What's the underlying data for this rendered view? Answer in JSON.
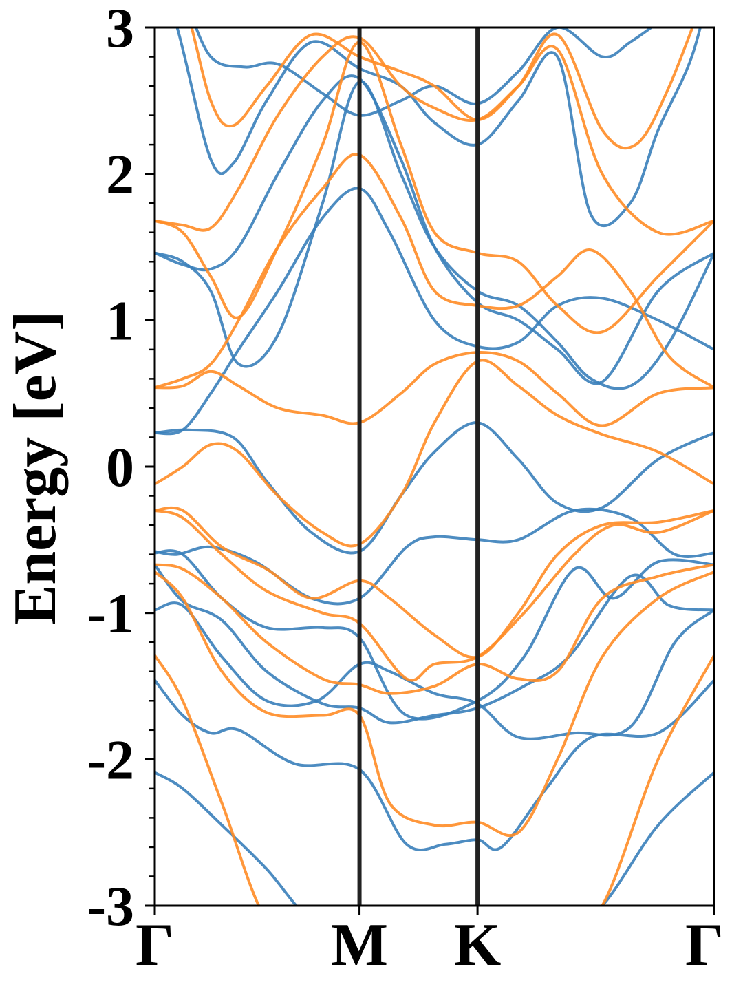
{
  "chart_data": {
    "type": "line",
    "title": "",
    "xlabel": "",
    "ylabel": "Energy [eV]",
    "ylim": [
      -3,
      3
    ],
    "yticks": [
      "-3",
      "-2",
      "-1",
      "0",
      "1",
      "2",
      "3"
    ],
    "xlim": [
      0,
      1.0
    ],
    "kpoints": [
      {
        "label": "Γ",
        "x": 0.0
      },
      {
        "label": "M",
        "x": 0.366
      },
      {
        "label": "K",
        "x": 0.577
      },
      {
        "label": "Γ",
        "x": 1.0
      }
    ],
    "grid": false,
    "legend": "none",
    "colors": {
      "spin_up": "#3a7fba",
      "spin_down": "#ff8c26",
      "kline": "#222222"
    },
    "series": [
      {
        "group": "spin_up",
        "x": [
          0,
          0.05,
          0.12,
          0.2,
          0.28,
          0.366,
          0.45,
          0.52,
          0.577,
          0.65,
          0.72,
          0.8,
          0.9,
          1.0
        ],
        "values": [
          -2.09,
          -2.2,
          -2.45,
          -2.75,
          -3.1,
          -3.2,
          -3.2,
          -3.2,
          -3.2,
          -3.2,
          -3.2,
          -3.0,
          -2.45,
          -2.09
        ]
      },
      {
        "group": "spin_up",
        "x": [
          0,
          0.05,
          0.1,
          0.15,
          0.25,
          0.366,
          0.45,
          0.52,
          0.577,
          0.62,
          0.7,
          0.78,
          0.9,
          1.0
        ],
        "values": [
          -1.46,
          -1.7,
          -1.82,
          -1.8,
          -2.03,
          -2.07,
          -2.58,
          -2.58,
          -2.55,
          -2.6,
          -2.2,
          -1.85,
          -1.82,
          -1.46
        ]
      },
      {
        "group": "spin_up",
        "x": [
          0,
          0.05,
          0.12,
          0.2,
          0.29,
          0.366,
          0.42,
          0.5,
          0.577,
          0.65,
          0.75,
          0.85,
          0.93,
          1.0
        ],
        "values": [
          -0.98,
          -0.95,
          -1.3,
          -1.6,
          -1.6,
          -1.35,
          -1.4,
          -1.55,
          -1.62,
          -1.85,
          -1.82,
          -1.78,
          -1.2,
          -0.98
        ]
      },
      {
        "group": "spin_up",
        "x": [
          0,
          0.05,
          0.12,
          0.2,
          0.3,
          0.366,
          0.42,
          0.5,
          0.577,
          0.66,
          0.74,
          0.85,
          0.92,
          1.0
        ],
        "values": [
          -0.67,
          -0.92,
          -1.05,
          -1.4,
          -1.62,
          -1.65,
          -1.75,
          -1.7,
          -1.65,
          -1.5,
          -1.3,
          -0.75,
          -0.95,
          -0.98
        ]
      },
      {
        "group": "spin_up",
        "x": [
          0,
          0.05,
          0.12,
          0.2,
          0.3,
          0.366,
          0.45,
          0.577,
          0.66,
          0.75,
          0.82,
          0.9,
          1.0
        ],
        "values": [
          -0.59,
          -0.6,
          -0.9,
          -1.1,
          -1.1,
          -1.17,
          -1.7,
          -1.6,
          -1.3,
          -0.7,
          -0.9,
          -0.65,
          -0.67
        ]
      },
      {
        "group": "spin_up",
        "x": [
          0,
          0.04,
          0.1,
          0.18,
          0.28,
          0.366,
          0.45,
          0.5,
          0.577,
          0.65,
          0.75,
          0.85,
          0.93,
          1.0
        ],
        "values": [
          -0.58,
          -0.6,
          -0.55,
          -0.65,
          -0.9,
          -0.9,
          -0.55,
          -0.48,
          -0.5,
          -0.5,
          -0.3,
          -0.35,
          -0.6,
          -0.59
        ]
      },
      {
        "group": "spin_up",
        "x": [
          0,
          0.06,
          0.14,
          0.2,
          0.28,
          0.366,
          0.44,
          0.5,
          0.577,
          0.65,
          0.72,
          0.8,
          0.9,
          1.0
        ],
        "values": [
          0.23,
          0.25,
          0.2,
          -0.1,
          -0.45,
          -0.58,
          -0.2,
          0.1,
          0.3,
          0.05,
          -0.25,
          -0.28,
          0.05,
          0.23
        ]
      },
      {
        "group": "spin_up",
        "x": [
          0,
          0.05,
          0.1,
          0.15,
          0.22,
          0.3,
          0.366,
          0.42,
          0.5,
          0.577,
          0.65,
          0.72,
          0.8,
          0.9,
          1.0
        ],
        "values": [
          0.23,
          0.25,
          0.5,
          0.8,
          1.2,
          1.7,
          1.9,
          1.6,
          1.0,
          0.82,
          0.85,
          1.1,
          1.15,
          1.0,
          0.8
        ]
      },
      {
        "group": "spin_up",
        "x": [
          0,
          0.05,
          0.1,
          0.15,
          0.22,
          0.3,
          0.366,
          0.44,
          0.5,
          0.577,
          0.65,
          0.72,
          0.78,
          0.85,
          0.92,
          1.0
        ],
        "values": [
          1.46,
          1.4,
          1.2,
          0.7,
          0.9,
          1.8,
          2.63,
          2.0,
          1.5,
          1.2,
          1.1,
          0.85,
          0.6,
          0.55,
          0.85,
          1.46
        ]
      },
      {
        "group": "spin_up",
        "x": [
          0,
          0.05,
          0.1,
          0.15,
          0.22,
          0.3,
          0.366,
          0.44,
          0.5,
          0.577,
          0.65,
          0.72,
          0.8,
          0.9,
          1.0
        ],
        "values": [
          1.46,
          1.38,
          1.35,
          1.5,
          2.0,
          2.5,
          2.65,
          2.1,
          1.5,
          1.12,
          1.0,
          0.8,
          0.58,
          1.2,
          1.46
        ]
      },
      {
        "group": "spin_up",
        "x": [
          0,
          0.04,
          0.1,
          0.14,
          0.2,
          0.28,
          0.366,
          0.44,
          0.5,
          0.577,
          0.65,
          0.72,
          0.78,
          0.85,
          0.9,
          0.96,
          1.0
        ],
        "values": [
          3.4,
          3.0,
          2.1,
          2.07,
          2.5,
          2.9,
          2.72,
          2.6,
          2.35,
          2.2,
          2.5,
          2.8,
          1.72,
          1.8,
          2.3,
          2.8,
          3.4
        ]
      },
      {
        "group": "spin_up",
        "x": [
          0,
          0.05,
          0.1,
          0.16,
          0.22,
          0.3,
          0.366,
          0.44,
          0.5,
          0.577,
          0.65,
          0.72,
          0.8,
          0.85,
          0.92,
          1.0
        ],
        "values": [
          3.4,
          3.2,
          2.8,
          2.73,
          2.75,
          2.55,
          2.4,
          2.5,
          2.6,
          2.48,
          2.7,
          3.0,
          2.8,
          2.9,
          3.1,
          3.4
        ]
      },
      {
        "group": "spin_down",
        "x": [
          0,
          0.05,
          0.12,
          0.2,
          0.28,
          0.366,
          0.45,
          0.52,
          0.577,
          0.65,
          0.72,
          0.8,
          0.9,
          1.0
        ],
        "values": [
          -1.29,
          -1.6,
          -2.3,
          -3.1,
          -3.2,
          -3.2,
          -3.2,
          -3.2,
          -3.2,
          -3.2,
          -3.2,
          -3.0,
          -2.0,
          -1.29
        ]
      },
      {
        "group": "spin_down",
        "x": [
          0,
          0.05,
          0.12,
          0.2,
          0.3,
          0.366,
          0.42,
          0.5,
          0.577,
          0.65,
          0.72,
          0.8,
          0.9,
          1.0
        ],
        "values": [
          -0.72,
          -0.9,
          -1.4,
          -1.68,
          -1.7,
          -1.7,
          -2.3,
          -2.45,
          -2.43,
          -2.5,
          -2.0,
          -1.3,
          -0.9,
          -0.72
        ]
      },
      {
        "group": "spin_down",
        "x": [
          0,
          0.05,
          0.12,
          0.2,
          0.3,
          0.366,
          0.42,
          0.5,
          0.577,
          0.65,
          0.72,
          0.8,
          0.9,
          1.0
        ],
        "values": [
          -0.67,
          -0.7,
          -0.9,
          -1.2,
          -1.45,
          -1.49,
          -1.55,
          -1.5,
          -1.35,
          -1.45,
          -1.4,
          -0.9,
          -0.75,
          -0.67
        ]
      },
      {
        "group": "spin_down",
        "x": [
          0,
          0.05,
          0.12,
          0.2,
          0.3,
          0.366,
          0.45,
          0.5,
          0.577,
          0.66,
          0.75,
          0.82,
          0.9,
          1.0
        ],
        "values": [
          -0.3,
          -0.35,
          -0.6,
          -0.85,
          -1.0,
          -1.07,
          -1.45,
          -1.35,
          -1.3,
          -1.0,
          -0.6,
          -0.4,
          -0.45,
          -0.3
        ]
      },
      {
        "group": "spin_down",
        "x": [
          0,
          0.05,
          0.12,
          0.2,
          0.28,
          0.366,
          0.42,
          0.5,
          0.577,
          0.65,
          0.72,
          0.8,
          0.9,
          1.0
        ],
        "values": [
          -0.3,
          -0.3,
          -0.55,
          -0.7,
          -0.9,
          -0.78,
          -0.9,
          -1.15,
          -1.3,
          -1.0,
          -0.6,
          -0.4,
          -0.38,
          -0.3
        ]
      },
      {
        "group": "spin_down",
        "x": [
          0,
          0.05,
          0.1,
          0.15,
          0.22,
          0.3,
          0.366,
          0.44,
          0.5,
          0.577,
          0.65,
          0.72,
          0.8,
          0.9,
          1.0
        ],
        "values": [
          -0.12,
          0.0,
          0.15,
          0.1,
          -0.2,
          -0.45,
          -0.53,
          -0.2,
          0.3,
          0.72,
          0.55,
          0.35,
          0.22,
          0.1,
          -0.12
        ]
      },
      {
        "group": "spin_down",
        "x": [
          0,
          0.05,
          0.1,
          0.15,
          0.22,
          0.3,
          0.366,
          0.44,
          0.5,
          0.577,
          0.65,
          0.72,
          0.8,
          0.9,
          1.0
        ],
        "values": [
          0.54,
          0.55,
          0.65,
          0.55,
          0.4,
          0.35,
          0.3,
          0.5,
          0.7,
          0.78,
          0.72,
          0.5,
          0.28,
          0.5,
          0.54
        ]
      },
      {
        "group": "spin_down",
        "x": [
          0,
          0.05,
          0.1,
          0.15,
          0.22,
          0.3,
          0.366,
          0.44,
          0.5,
          0.577,
          0.65,
          0.72,
          0.78,
          0.85,
          0.92,
          1.0
        ],
        "values": [
          0.54,
          0.6,
          0.7,
          1.0,
          1.5,
          1.9,
          2.13,
          1.7,
          1.2,
          1.1,
          1.1,
          1.3,
          1.48,
          1.2,
          0.75,
          0.54
        ]
      },
      {
        "group": "spin_down",
        "x": [
          0,
          0.05,
          0.1,
          0.15,
          0.22,
          0.3,
          0.366,
          0.44,
          0.5,
          0.577,
          0.65,
          0.72,
          0.8,
          0.9,
          1.0
        ],
        "values": [
          1.68,
          1.6,
          1.3,
          1.02,
          1.5,
          2.2,
          2.9,
          2.2,
          1.6,
          1.46,
          1.4,
          1.1,
          0.92,
          1.3,
          1.68
        ]
      },
      {
        "group": "spin_down",
        "x": [
          0,
          0.05,
          0.1,
          0.15,
          0.22,
          0.3,
          0.366,
          0.44,
          0.5,
          0.577,
          0.65,
          0.72,
          0.8,
          0.9,
          1.0
        ],
        "values": [
          1.68,
          1.65,
          1.63,
          1.9,
          2.4,
          2.8,
          2.93,
          2.6,
          2.45,
          2.37,
          2.6,
          2.85,
          2.0,
          1.6,
          1.68
        ]
      },
      {
        "group": "spin_down",
        "x": [
          0,
          0.05,
          0.1,
          0.14,
          0.2,
          0.28,
          0.366,
          0.44,
          0.5,
          0.577,
          0.65,
          0.72,
          0.8,
          0.86,
          0.92,
          1.0
        ],
        "values": [
          3.4,
          3.2,
          2.5,
          2.33,
          2.6,
          2.95,
          2.8,
          2.7,
          2.6,
          2.37,
          2.6,
          2.95,
          2.3,
          2.2,
          2.6,
          3.4
        ]
      }
    ]
  }
}
